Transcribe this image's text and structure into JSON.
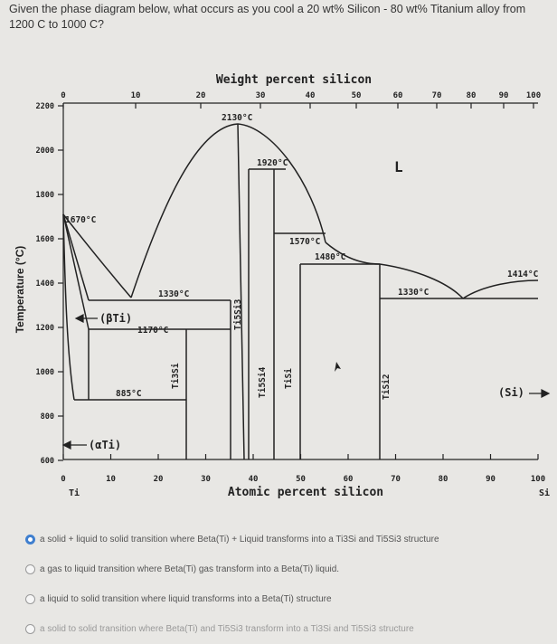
{
  "question": "Given the phase diagram below, what occurs as you cool a 20 wt% Silicon - 80 wt% Titanium alloy from 1200 C to 1000 C?",
  "diagram": {
    "top_axis_title": "Weight percent silicon",
    "top_ticks": [
      "0",
      "10",
      "20",
      "30",
      "40",
      "50",
      "60",
      "70",
      "80",
      "90",
      "100"
    ],
    "bottom_axis_title": "Atomic percent silicon",
    "bottom_ticks": [
      "0",
      "10",
      "20",
      "30",
      "40",
      "50",
      "60",
      "70",
      "80",
      "90",
      "100"
    ],
    "bottom_left_element": "Ti",
    "bottom_right_element": "Si",
    "y_axis_title": "Temperature (°C)",
    "y_ticks": [
      "2200",
      "2000",
      "1800",
      "1600",
      "1400",
      "1200",
      "1000",
      "800",
      "600"
    ],
    "labels": {
      "t2130": "2130°C",
      "t1920": "1920°C",
      "t1670": "1670°C",
      "t1570": "1570°C",
      "t1480": "1480°C",
      "t1414": "1414°C",
      "t1330a": "1330°C",
      "t1330b": "1330°C",
      "t1170": "1170°C",
      "t885": "885°C",
      "liquid": "L",
      "beta_ti": "(βTi)",
      "alpha_ti": "(αTi)",
      "si_phase": "(Si)",
      "ti3si": "Ti3Si",
      "ti5si3": "Ti5Si3",
      "ti5si4": "Ti5Si4",
      "tisi": "TiSi",
      "tisi2": "TiSi2"
    }
  },
  "options": [
    {
      "text": "a solid + liquid to solid transition where Beta(Ti) + Liquid transforms into a Ti3Si and Ti5Si3 structure",
      "selected": true
    },
    {
      "text": "a gas to liquid transition where Beta(Ti) gas transform into a Beta(Ti) liquid.",
      "selected": false
    },
    {
      "text": "a liquid to solid transition where liquid transforms into a Beta(Ti) structure",
      "selected": false
    },
    {
      "text": "a solid to solid transition where Beta(Ti) and Ti5Si3 transform into a Ti3Si and Ti5Si3 structure",
      "selected": false
    }
  ]
}
